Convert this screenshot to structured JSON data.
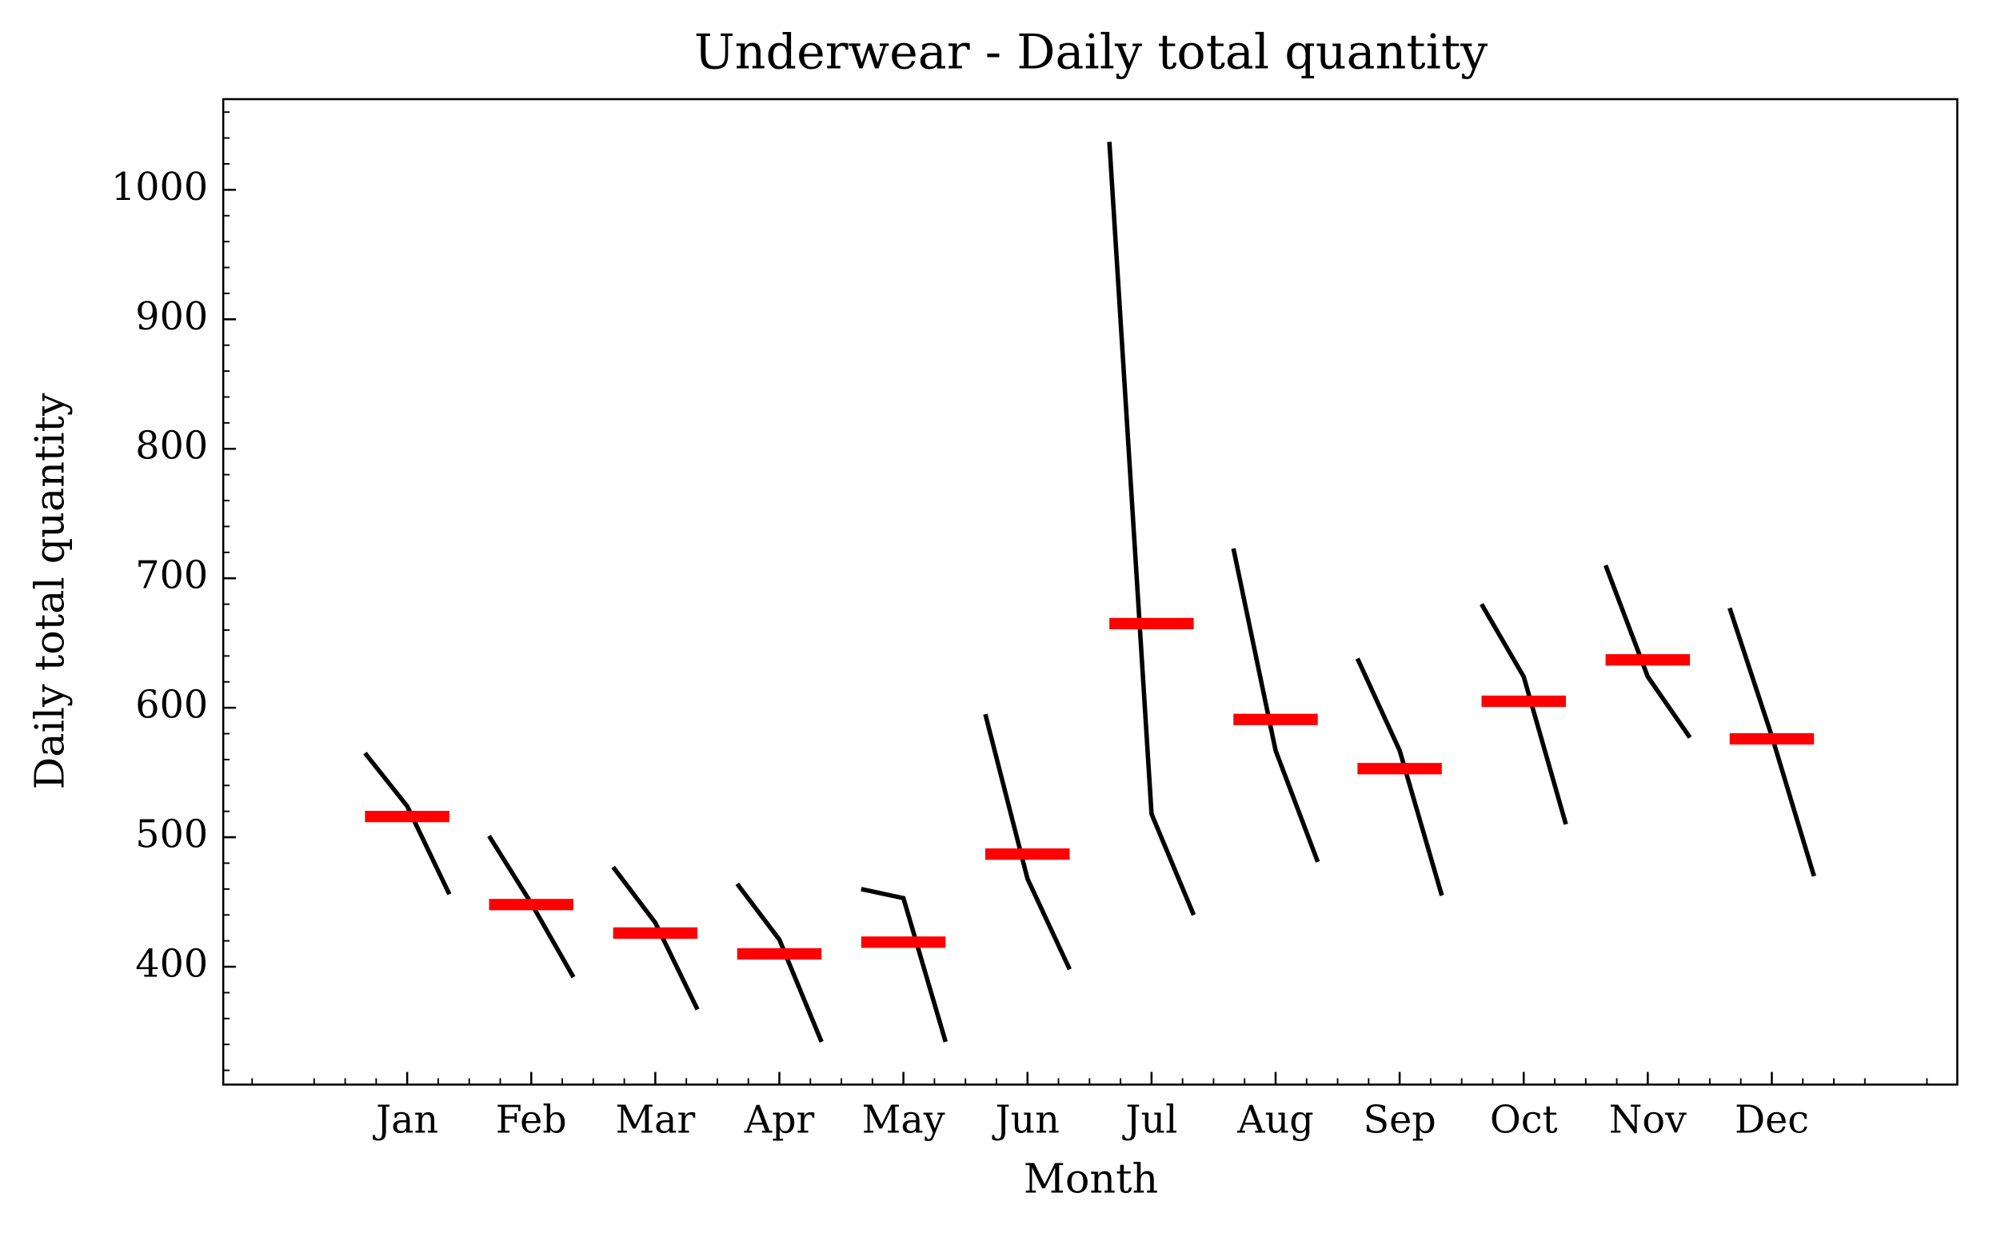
{
  "chart_data": {
    "type": "month_plot",
    "title": "Underwear - Daily total quantity",
    "x_label": "Month",
    "y_label": "Daily total quantity",
    "categories": [
      "Jan",
      "Feb",
      "Mar",
      "Apr",
      "May",
      "Jun",
      "Jul",
      "Aug",
      "Sep",
      "Oct",
      "Nov",
      "Dec"
    ],
    "values": [
      [
        565,
        524,
        456
      ],
      [
        501,
        449,
        392
      ],
      [
        477,
        434,
        367
      ],
      [
        464,
        421,
        342
      ],
      [
        460,
        453,
        342
      ],
      [
        595,
        468,
        398
      ],
      [
        1037,
        518,
        440
      ],
      [
        723,
        567,
        481
      ],
      [
        638,
        567,
        455
      ],
      [
        680,
        624,
        510
      ],
      [
        710,
        624,
        577
      ],
      [
        677,
        578,
        470
      ]
    ],
    "means": [
      516,
      448,
      426,
      410,
      419,
      487,
      665,
      591,
      553,
      605,
      637,
      576
    ],
    "line_color": "#000000",
    "mean_color": "#ff0000",
    "ylim": [
      309,
      1070
    ],
    "yticks": [
      400,
      500,
      600,
      700,
      800,
      900,
      1000
    ]
  }
}
